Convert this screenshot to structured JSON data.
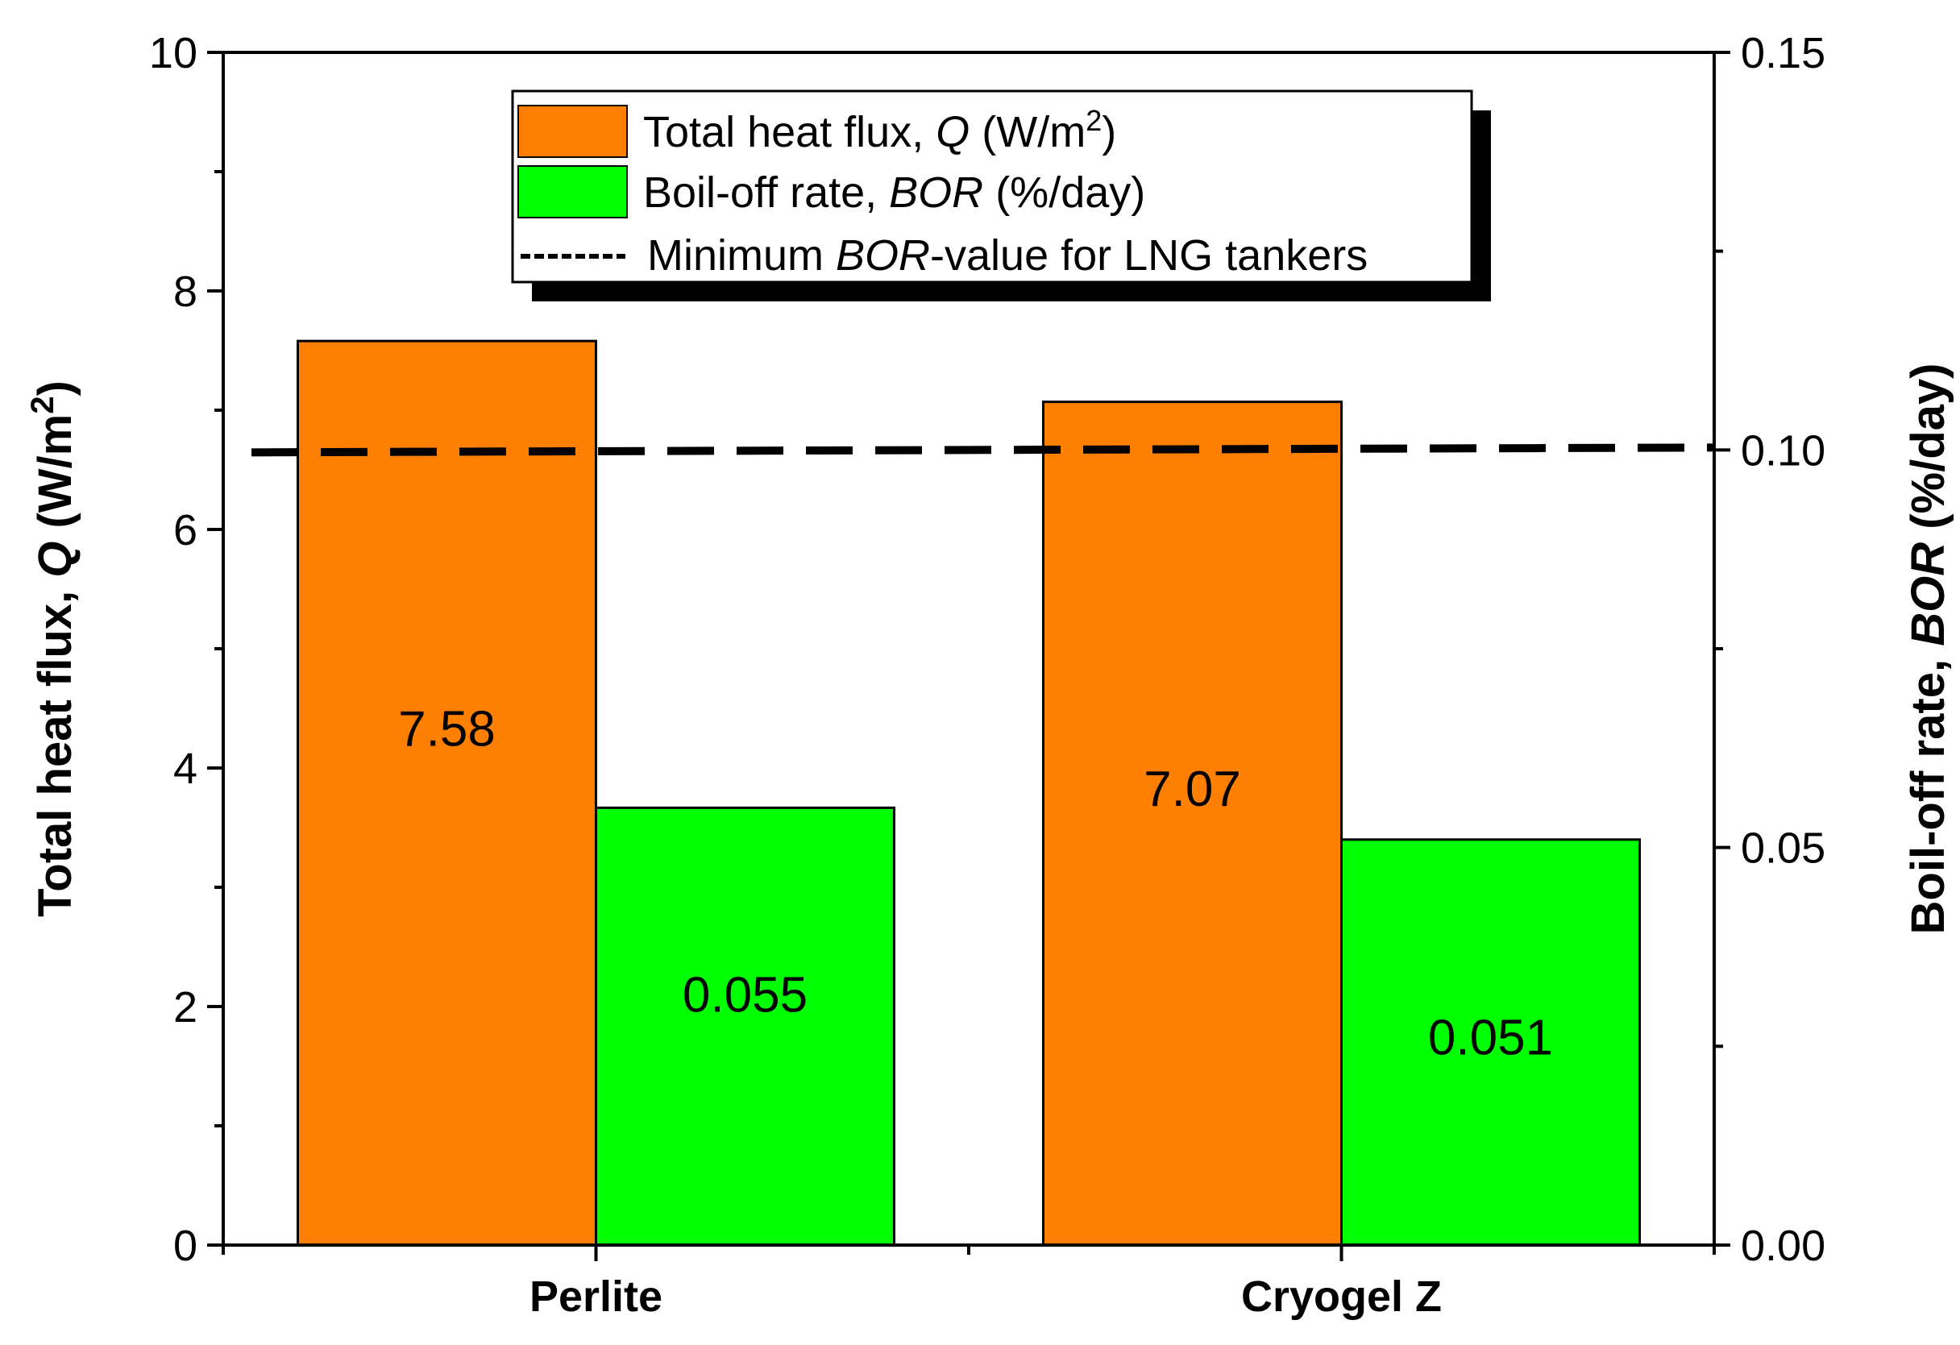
{
  "chart_data": {
    "type": "bar",
    "categories": [
      "Perlite",
      "Cryogel Z"
    ],
    "series": [
      {
        "name": "Total heat flux, Q (W/m2)",
        "axis": "left",
        "color": "#FF7F00",
        "values": [
          7.58,
          7.07
        ],
        "labels": [
          "7.58",
          "7.07"
        ],
        "legend": {
          "pre": "Total heat flux, ",
          "italic": "Q",
          "post": " (W/m",
          "sup": "2",
          "end": ")"
        }
      },
      {
        "name": "Boil-off rate, BOR (%/day)",
        "axis": "right",
        "color": "#00FF00",
        "values": [
          0.055,
          0.051
        ],
        "labels": [
          "0.055",
          "0.051"
        ],
        "legend": {
          "pre": "Boil-off rate, ",
          "italic": "BOR",
          "post": " (%/day)",
          "sup": "",
          "end": ""
        }
      }
    ],
    "reference_line": {
      "name": "Minimum BOR-value for LNG tankers",
      "axis": "right",
      "value": 0.1,
      "legend": {
        "pre": "Minimum ",
        "italic": "BOR",
        "post": "-value for LNG tankers"
      }
    },
    "left_axis": {
      "title": {
        "pre": "Total heat flux, ",
        "italic": "Q",
        "post": " (W/m",
        "sup": "2",
        "end": ")"
      },
      "ylim": [
        0,
        10
      ],
      "ticks": [
        0,
        2,
        4,
        6,
        8,
        10
      ],
      "tick_labels": [
        "0",
        "2",
        "4",
        "6",
        "8",
        "10"
      ]
    },
    "right_axis": {
      "title": {
        "pre": "Boil-off rate, ",
        "italic": "BOR",
        "post": " (%/day)"
      },
      "ylim": [
        0,
        0.15
      ],
      "ticks": [
        0,
        0.05,
        0.1,
        0.15
      ],
      "tick_labels": [
        "0.00",
        "0.05",
        "0.10",
        "0.15"
      ]
    },
    "legend_position": "top-center",
    "grid": false
  }
}
